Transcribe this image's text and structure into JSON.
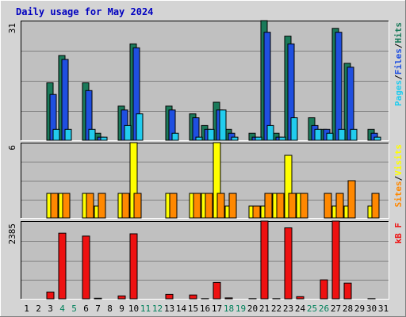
{
  "page": {
    "title": "Daily usage for May 2024",
    "colors": {
      "background": "#c0c0c0",
      "frame": "#d4d4d4",
      "title": "#0000c0",
      "hits": "#1a7a5a",
      "files": "#1f4fe0",
      "pages": "#22ccee",
      "visits": "#ffff00",
      "sites": "#ff8800",
      "kbf": "#ee1111",
      "weekend": "#00805a"
    }
  },
  "chart_data": {
    "type": "bar",
    "title": "Daily usage for May 2024",
    "categories": [
      "1",
      "2",
      "3",
      "4",
      "5",
      "6",
      "7",
      "8",
      "9",
      "10",
      "11",
      "12",
      "13",
      "14",
      "15",
      "16",
      "17",
      "18",
      "19",
      "20",
      "21",
      "22",
      "23",
      "24",
      "25",
      "26",
      "27",
      "28",
      "29",
      "30",
      "31"
    ],
    "weekend_days": [
      "4",
      "5",
      "11",
      "12",
      "18",
      "19",
      "25",
      "26"
    ],
    "panels": [
      {
        "name": "hits-files-pages",
        "ymax_label": "31",
        "ylim": [
          0,
          31
        ],
        "grid": true,
        "legend": [
          "Pages",
          "/",
          "Files",
          "/",
          "Hits"
        ],
        "series": [
          {
            "name": "Hits",
            "values": [
              0,
              0,
              15,
              22,
              0,
              15,
              2,
              0,
              9,
              25,
              0,
              0,
              9,
              0,
              7,
              4,
              10,
              3,
              0,
              2,
              31,
              2,
              27,
              0,
              6,
              3,
              29,
              20,
              0,
              3,
              0
            ]
          },
          {
            "name": "Files",
            "values": [
              0,
              0,
              12,
              21,
              0,
              13,
              1,
              0,
              8,
              24,
              0,
              0,
              8,
              0,
              6,
              3,
              8,
              2,
              0,
              1,
              28,
              1,
              25,
              0,
              4,
              3,
              28,
              19,
              0,
              2,
              0
            ]
          },
          {
            "name": "Pages",
            "values": [
              0,
              0,
              3,
              3,
              0,
              3,
              1,
              0,
              4,
              7,
              0,
              0,
              2,
              0,
              1,
              3,
              8,
              1,
              0,
              1,
              4,
              1,
              6,
              0,
              3,
              2,
              3,
              3,
              0,
              1,
              0
            ]
          }
        ]
      },
      {
        "name": "visits-sites",
        "ymax_label": "6",
        "ylim": [
          0,
          6
        ],
        "grid": true,
        "legend": [
          "Sites",
          "/",
          "Visits"
        ],
        "series": [
          {
            "name": "Visits",
            "values": [
              0,
              0,
              2,
              2,
              0,
              2,
              1,
              0,
              2,
              6,
              0,
              0,
              2,
              0,
              2,
              2,
              6,
              1,
              0,
              1,
              1,
              2,
              5,
              2,
              0,
              0,
              1,
              1,
              0,
              1,
              0
            ]
          },
          {
            "name": "Sites",
            "values": [
              0,
              0,
              2,
              2,
              0,
              2,
              2,
              0,
              2,
              2,
              0,
              0,
              2,
              0,
              2,
              2,
              2,
              2,
              0,
              1,
              2,
              2,
              2,
              2,
              0,
              2,
              2,
              3,
              0,
              2,
              0
            ]
          }
        ]
      },
      {
        "name": "kbf",
        "ymax_label": "2385",
        "ylim": [
          0,
          2385
        ],
        "grid": true,
        "legend": [
          "kB F"
        ],
        "series": [
          {
            "name": "kB F",
            "values": [
              0,
              0,
              230,
              2020,
              0,
              1930,
              40,
              0,
              110,
              2000,
              0,
              0,
              160,
              0,
              140,
              30,
              520,
              50,
              0,
              30,
              2385,
              30,
              2180,
              90,
              0,
              600,
              2385,
              500,
              0,
              30,
              0
            ]
          }
        ]
      }
    ]
  }
}
